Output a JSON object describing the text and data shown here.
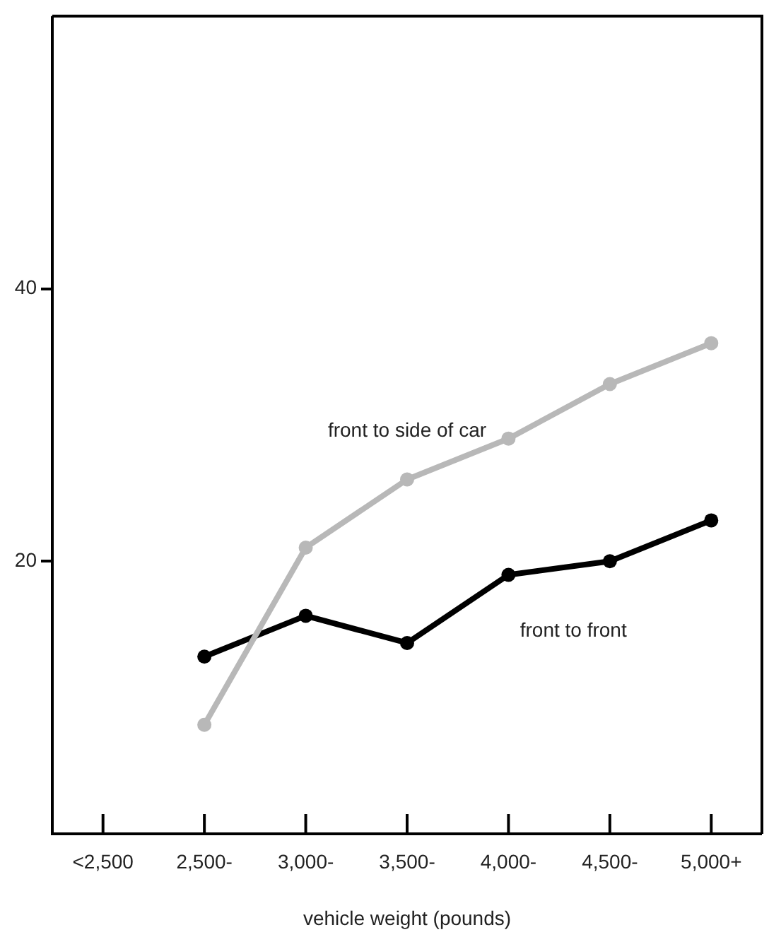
{
  "chart_data": {
    "type": "line",
    "xlabel": "vehicle weight (pounds)",
    "categories": [
      "<2,500",
      "2,500-",
      "3,000-",
      "3,500-",
      "4,000-",
      "4,500-",
      "5,000+"
    ],
    "ylim": [
      0,
      60
    ],
    "yticks": [
      20,
      40
    ],
    "marker": "circle",
    "line_style": "solid",
    "legend": false,
    "series": [
      {
        "name": "front to side of car",
        "color": "#b8b8b8",
        "values": [
          null,
          8,
          21,
          26,
          29,
          33,
          36
        ]
      },
      {
        "name": "front to front",
        "color": "#000000",
        "values": [
          null,
          13,
          16,
          14,
          19,
          20,
          23
        ]
      }
    ]
  }
}
